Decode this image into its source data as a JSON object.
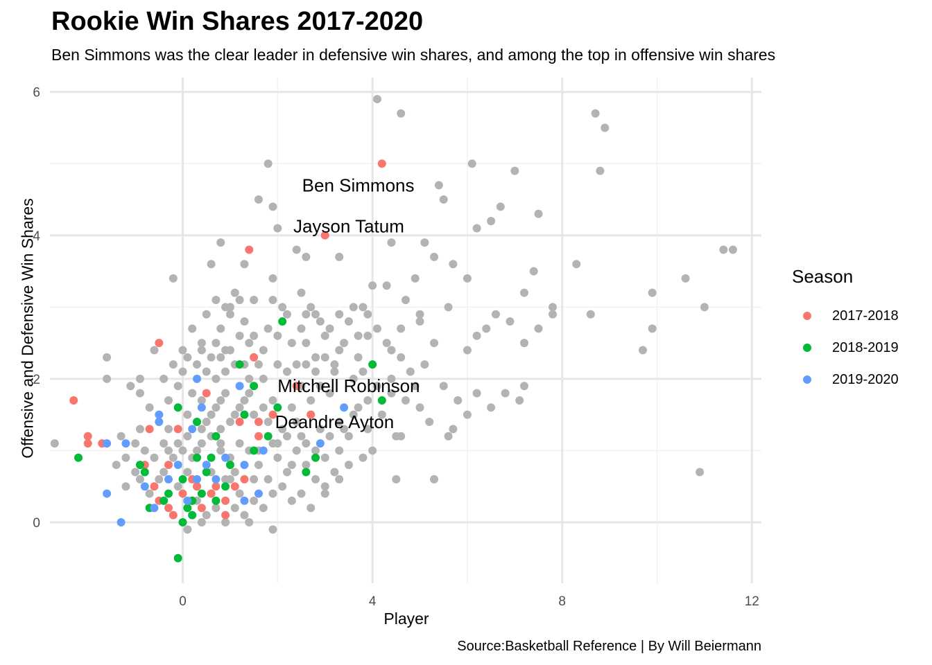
{
  "chart_data": {
    "type": "scatter",
    "title": "Rookie Win Shares 2017-2020",
    "subtitle": "Ben Simmons was the clear leader in defensive win shares, and among the top in offensive win shares",
    "caption": "Source:Basketball Reference | By Will Beiermann",
    "xlabel": "Player",
    "ylabel": "Offensive and Defensive Win Shares",
    "xlim": [
      -2.8,
      12.2
    ],
    "ylim": [
      -0.85,
      6.2
    ],
    "x_ticks": [
      0,
      4,
      8,
      12
    ],
    "y_ticks": [
      0,
      2,
      4,
      6
    ],
    "grid": true,
    "legend": {
      "title": "Season",
      "position": "right",
      "entries": [
        {
          "label": "2017-2018",
          "color": "#F8766D"
        },
        {
          "label": "2018-2019",
          "color": "#00BA38"
        },
        {
          "label": "2019-2020",
          "color": "#619CFF"
        }
      ]
    },
    "other_color": "#b3b3b3",
    "annotations": [
      {
        "text": "Ben Simmons",
        "x": 3.7,
        "y": 4.7
      },
      {
        "text": "Jayson Tatum",
        "x": 3.5,
        "y": 4.13
      },
      {
        "text": "Mitchell Robinson",
        "x": 3.5,
        "y": 1.9
      },
      {
        "text": "Deandre Ayton",
        "x": 3.2,
        "y": 1.4
      }
    ],
    "series": [
      {
        "name": "2017-2018",
        "points": [
          [
            4.2,
            5.0
          ],
          [
            3.0,
            4.0
          ],
          [
            1.4,
            3.8
          ],
          [
            -2.3,
            1.7
          ],
          [
            -2.0,
            1.2
          ],
          [
            -2.0,
            1.1
          ],
          [
            -1.7,
            1.1
          ],
          [
            -0.5,
            2.5
          ],
          [
            -0.7,
            1.3
          ],
          [
            -0.8,
            0.8
          ],
          [
            -0.6,
            0.5
          ],
          [
            -0.5,
            0.3
          ],
          [
            -0.3,
            0.2
          ],
          [
            -0.2,
            0.1
          ],
          [
            0.0,
            0.4
          ],
          [
            0.2,
            0.3
          ],
          [
            0.3,
            0.5
          ],
          [
            0.4,
            0.2
          ],
          [
            0.6,
            0.4
          ],
          [
            0.9,
            0.1
          ],
          [
            1.1,
            0.5
          ],
          [
            1.2,
            1.4
          ],
          [
            1.5,
            2.3
          ],
          [
            1.6,
            1.4
          ],
          [
            1.6,
            1.2
          ],
          [
            1.9,
            1.5
          ],
          [
            0.5,
            1.8
          ],
          [
            0.9,
            0.3
          ],
          [
            1.3,
            0.6
          ],
          [
            -0.1,
            1.3
          ],
          [
            2.4,
            1.9
          ],
          [
            2.7,
            1.5
          ],
          [
            0.2,
            0.6
          ],
          [
            0.7,
            0.5
          ],
          [
            -0.3,
            0.8
          ]
        ]
      },
      {
        "name": "2018-2019",
        "points": [
          [
            2.1,
            2.8
          ],
          [
            4.0,
            2.2
          ],
          [
            1.2,
            2.2
          ],
          [
            4.2,
            1.7
          ],
          [
            2.0,
            1.6
          ],
          [
            1.5,
            1.9
          ],
          [
            -2.2,
            0.9
          ],
          [
            -0.1,
            1.6
          ],
          [
            0.3,
            1.4
          ],
          [
            0.7,
            1.2
          ],
          [
            1.0,
            0.8
          ],
          [
            1.8,
            1.2
          ],
          [
            1.5,
            1.0
          ],
          [
            2.6,
            0.7
          ],
          [
            2.8,
            0.9
          ],
          [
            -0.7,
            0.2
          ],
          [
            -0.8,
            0.7
          ],
          [
            -0.3,
            0.4
          ],
          [
            0.0,
            0.6
          ],
          [
            0.1,
            0.2
          ],
          [
            0.2,
            0.3
          ],
          [
            0.3,
            0.9
          ],
          [
            0.5,
            0.7
          ],
          [
            0.7,
            0.3
          ],
          [
            0.9,
            0.5
          ],
          [
            -0.1,
            -0.5
          ],
          [
            0.0,
            0.0
          ],
          [
            -0.9,
            0.8
          ],
          [
            0.4,
            0.4
          ],
          [
            -0.4,
            0.3
          ],
          [
            0.2,
            0.1
          ],
          [
            0.6,
            0.9
          ],
          [
            1.3,
            1.5
          ]
        ]
      },
      {
        "name": "2019-2020",
        "points": [
          [
            0.3,
            2.0
          ],
          [
            1.2,
            1.9
          ],
          [
            0.4,
            1.6
          ],
          [
            -0.5,
            1.5
          ],
          [
            0.2,
            1.3
          ],
          [
            -1.2,
            1.1
          ],
          [
            -1.6,
            1.1
          ],
          [
            -1.6,
            0.4
          ],
          [
            -1.3,
            0.0
          ],
          [
            -0.6,
            0.2
          ],
          [
            -0.8,
            0.5
          ],
          [
            -0.3,
            0.6
          ],
          [
            -0.1,
            0.8
          ],
          [
            0.3,
            0.6
          ],
          [
            0.9,
            0.9
          ],
          [
            1.3,
            0.8
          ],
          [
            0.5,
            0.8
          ],
          [
            1.3,
            0.3
          ],
          [
            1.6,
            0.4
          ],
          [
            1.7,
            1.0
          ],
          [
            2.9,
            1.1
          ],
          [
            3.4,
            1.6
          ],
          [
            0.1,
            0.3
          ],
          [
            -0.5,
            1.4
          ],
          [
            0.7,
            0.6
          ]
        ]
      }
    ],
    "other_players": [
      [
        4.1,
        5.9
      ],
      [
        4.6,
        5.7
      ],
      [
        8.7,
        5.7
      ],
      [
        8.9,
        5.5
      ],
      [
        6.1,
        5.0
      ],
      [
        7.0,
        4.9
      ],
      [
        8.8,
        4.9
      ],
      [
        1.8,
        5.0
      ],
      [
        5.4,
        4.7
      ],
      [
        5.5,
        4.5
      ],
      [
        1.6,
        4.5
      ],
      [
        1.9,
        4.4
      ],
      [
        6.7,
        4.4
      ],
      [
        6.5,
        4.2
      ],
      [
        7.5,
        4.3
      ],
      [
        6.2,
        4.1
      ],
      [
        2.0,
        4.1
      ],
      [
        2.4,
        3.8
      ],
      [
        1.3,
        3.6
      ],
      [
        0.8,
        3.9
      ],
      [
        0.6,
        3.6
      ],
      [
        -0.2,
        3.4
      ],
      [
        2.6,
        3.7
      ],
      [
        3.3,
        3.7
      ],
      [
        4.4,
        3.9
      ],
      [
        5.1,
        3.9
      ],
      [
        5.3,
        3.7
      ],
      [
        5.7,
        3.6
      ],
      [
        6.0,
        3.4
      ],
      [
        7.2,
        3.2
      ],
      [
        7.4,
        3.5
      ],
      [
        8.3,
        3.6
      ],
      [
        11.4,
        3.8
      ],
      [
        11.6,
        3.8
      ],
      [
        10.6,
        3.4
      ],
      [
        9.9,
        3.2
      ],
      [
        11.0,
        3.0
      ],
      [
        9.9,
        2.7
      ],
      [
        9.7,
        2.4
      ],
      [
        8.6,
        2.9
      ],
      [
        7.8,
        3.0
      ],
      [
        7.8,
        2.9
      ],
      [
        7.5,
        2.7
      ],
      [
        7.2,
        2.5
      ],
      [
        6.9,
        2.8
      ],
      [
        6.6,
        2.9
      ],
      [
        6.4,
        2.7
      ],
      [
        6.2,
        2.6
      ],
      [
        6.0,
        2.4
      ],
      [
        5.6,
        3.0
      ],
      [
        5.3,
        2.5
      ],
      [
        5.0,
        2.9
      ],
      [
        4.7,
        3.1
      ],
      [
        4.6,
        2.7
      ],
      [
        4.4,
        2.4
      ],
      [
        3.8,
        3.0
      ],
      [
        3.9,
        2.6
      ],
      [
        3.7,
        2.3
      ],
      [
        3.6,
        2.0
      ],
      [
        3.5,
        2.8
      ],
      [
        3.3,
        2.4
      ],
      [
        3.2,
        2.2
      ],
      [
        3.0,
        2.6
      ],
      [
        2.8,
        2.9
      ],
      [
        2.8,
        2.3
      ],
      [
        2.6,
        2.5
      ],
      [
        2.5,
        2.7
      ],
      [
        2.4,
        2.2
      ],
      [
        2.2,
        2.9
      ],
      [
        2.0,
        2.6
      ],
      [
        1.9,
        3.1
      ],
      [
        1.8,
        2.7
      ],
      [
        1.7,
        2.4
      ],
      [
        1.6,
        2.2
      ],
      [
        1.5,
        2.6
      ],
      [
        1.4,
        2.0
      ],
      [
        1.3,
        2.8
      ],
      [
        1.2,
        3.1
      ],
      [
        1.1,
        3.2
      ],
      [
        1.0,
        2.9
      ],
      [
        0.9,
        3.0
      ],
      [
        0.8,
        2.7
      ],
      [
        0.7,
        2.5
      ],
      [
        0.6,
        2.3
      ],
      [
        0.5,
        2.9
      ],
      [
        0.4,
        2.5
      ],
      [
        0.3,
        2.2
      ],
      [
        0.2,
        2.7
      ],
      [
        0.1,
        2.3
      ],
      [
        0.0,
        2.1
      ],
      [
        -0.2,
        2.2
      ],
      [
        -0.4,
        2.0
      ],
      [
        -0.6,
        2.4
      ],
      [
        -0.9,
        2.0
      ],
      [
        -1.1,
        1.9
      ],
      [
        -1.6,
        2.3
      ],
      [
        -1.6,
        2.0
      ],
      [
        -0.9,
        1.8
      ],
      [
        -0.7,
        1.6
      ],
      [
        -0.3,
        1.7
      ],
      [
        0.1,
        1.5
      ],
      [
        0.4,
        1.7
      ],
      [
        0.6,
        1.5
      ],
      [
        0.8,
        1.7
      ],
      [
        1.0,
        1.4
      ],
      [
        1.2,
        1.6
      ],
      [
        1.4,
        1.8
      ],
      [
        1.7,
        1.6
      ],
      [
        1.9,
        1.7
      ],
      [
        2.1,
        1.3
      ],
      [
        2.3,
        1.6
      ],
      [
        2.5,
        1.2
      ],
      [
        2.7,
        1.7
      ],
      [
        2.9,
        1.3
      ],
      [
        3.1,
        1.8
      ],
      [
        3.3,
        1.4
      ],
      [
        3.5,
        1.2
      ],
      [
        3.7,
        1.6
      ],
      [
        3.9,
        1.3
      ],
      [
        4.2,
        1.5
      ],
      [
        4.5,
        1.2
      ],
      [
        4.7,
        1.7
      ],
      [
        5.0,
        1.6
      ],
      [
        5.2,
        1.4
      ],
      [
        5.5,
        1.9
      ],
      [
        5.8,
        1.7
      ],
      [
        6.0,
        1.5
      ],
      [
        6.2,
        1.8
      ],
      [
        6.5,
        1.6
      ],
      [
        6.8,
        1.8
      ],
      [
        7.2,
        1.9
      ],
      [
        7.1,
        1.7
      ],
      [
        5.6,
        1.2
      ],
      [
        5.7,
        1.3
      ],
      [
        4.6,
        1.2
      ],
      [
        4.0,
        1.0
      ],
      [
        3.8,
        0.9
      ],
      [
        3.5,
        0.8
      ],
      [
        3.2,
        0.7
      ],
      [
        3.0,
        0.9
      ],
      [
        2.8,
        0.6
      ],
      [
        2.6,
        0.8
      ],
      [
        2.4,
        1.0
      ],
      [
        2.2,
        0.7
      ],
      [
        2.0,
        0.9
      ],
      [
        1.8,
        0.6
      ],
      [
        1.6,
        0.8
      ],
      [
        1.4,
        1.0
      ],
      [
        1.2,
        0.4
      ],
      [
        1.0,
        0.6
      ],
      [
        0.8,
        1.0
      ],
      [
        0.6,
        0.7
      ],
      [
        0.4,
        1.1
      ],
      [
        0.2,
        0.9
      ],
      [
        0.0,
        1.0
      ],
      [
        -0.2,
        0.9
      ],
      [
        -0.4,
        1.1
      ],
      [
        -0.6,
        0.9
      ],
      [
        -0.8,
        1.0
      ],
      [
        -1.0,
        0.7
      ],
      [
        -1.2,
        0.5
      ],
      [
        -1.4,
        0.8
      ],
      [
        -1.3,
        1.2
      ],
      [
        -1.0,
        1.1
      ],
      [
        -0.9,
        1.3
      ],
      [
        -2.7,
        1.1
      ],
      [
        -1.2,
        0.9
      ],
      [
        -0.9,
        0.6
      ],
      [
        -0.4,
        0.7
      ],
      [
        -0.1,
        0.5
      ],
      [
        0.1,
        0.7
      ],
      [
        0.3,
        0.3
      ],
      [
        0.5,
        0.1
      ],
      [
        0.7,
        0.2
      ],
      [
        0.9,
        0.6
      ],
      [
        1.1,
        0.2
      ],
      [
        1.3,
        0.1
      ],
      [
        1.5,
        0.3
      ],
      [
        1.7,
        0.2
      ],
      [
        1.9,
        0.4
      ],
      [
        2.1,
        0.5
      ],
      [
        2.3,
        0.3
      ],
      [
        2.5,
        0.4
      ],
      [
        2.7,
        0.2
      ],
      [
        3.0,
        0.5
      ],
      [
        3.3,
        0.6
      ],
      [
        4.5,
        0.6
      ],
      [
        5.3,
        0.6
      ],
      [
        10.9,
        0.7
      ],
      [
        1.0,
        0.9
      ],
      [
        0.8,
        1.3
      ],
      [
        0.6,
        1.2
      ],
      [
        0.4,
        1.3
      ],
      [
        2.0,
        1.1
      ],
      [
        2.2,
        1.2
      ],
      [
        2.4,
        1.4
      ],
      [
        2.6,
        1.1
      ],
      [
        1.8,
        1.4
      ],
      [
        1.6,
        1.0
      ],
      [
        0.2,
        0.1
      ],
      [
        0.4,
        0.0
      ],
      [
        0.1,
        -0.1
      ],
      [
        1.9,
        -0.1
      ],
      [
        1.4,
        0.0
      ],
      [
        0.9,
        0.0
      ],
      [
        3.3,
        1.0
      ],
      [
        3.0,
        0.4
      ],
      [
        1.2,
        1.1
      ],
      [
        0.0,
        2.4
      ],
      [
        0.9,
        2.4
      ],
      [
        1.4,
        2.5
      ],
      [
        2.1,
        3.0
      ],
      [
        2.5,
        3.2
      ],
      [
        1.9,
        3.4
      ],
      [
        0.7,
        3.1
      ],
      [
        1.0,
        3.0
      ],
      [
        1.5,
        3.1
      ],
      [
        3.6,
        3.0
      ],
      [
        4.3,
        3.3
      ],
      [
        5.0,
        2.8
      ],
      [
        4.0,
        3.3
      ],
      [
        4.9,
        3.4
      ],
      [
        3.9,
        2.9
      ],
      [
        3.4,
        2.5
      ],
      [
        2.9,
        1.9
      ],
      [
        3.8,
        2.1
      ],
      [
        4.4,
        2.0
      ],
      [
        1.3,
        2.2
      ],
      [
        0.9,
        2.1
      ],
      [
        1.5,
        1.5
      ],
      [
        0.8,
        1.1
      ],
      [
        0.6,
        0.4
      ],
      [
        0.3,
        0.5
      ],
      [
        -0.3,
        1.0
      ],
      [
        -0.5,
        0.6
      ],
      [
        -0.7,
        0.4
      ],
      [
        1.5,
        0.6
      ],
      [
        2.3,
        0.8
      ],
      [
        1.1,
        0.7
      ],
      [
        1.9,
        1.1
      ],
      [
        2.8,
        1.0
      ],
      [
        3.1,
        1.2
      ],
      [
        3.4,
        1.3
      ],
      [
        3.6,
        1.5
      ],
      [
        3.9,
        1.7
      ],
      [
        4.1,
        1.9
      ],
      [
        4.4,
        1.8
      ],
      [
        4.8,
        2.1
      ],
      [
        4.6,
        2.3
      ],
      [
        5.1,
        2.2
      ],
      [
        4.9,
        1.9
      ],
      [
        4.3,
        2.5
      ],
      [
        4.1,
        2.7
      ],
      [
        3.7,
        2.6
      ],
      [
        3.3,
        2.9
      ],
      [
        2.7,
        3.0
      ],
      [
        2.3,
        2.5
      ],
      [
        2.0,
        2.2
      ],
      [
        1.7,
        2.0
      ],
      [
        1.2,
        2.6
      ],
      [
        0.7,
        2.0
      ],
      [
        0.5,
        2.1
      ],
      [
        0.2,
        1.8
      ],
      [
        -0.1,
        1.9
      ],
      [
        -0.3,
        1.3
      ],
      [
        -0.1,
        1.1
      ],
      [
        0.1,
        1.2
      ],
      [
        0.3,
        1.0
      ],
      [
        0.5,
        1.4
      ],
      [
        0.7,
        1.6
      ],
      [
        0.9,
        1.8
      ],
      [
        1.1,
        1.5
      ],
      [
        1.3,
        1.7
      ],
      [
        2.5,
        1.9
      ],
      [
        2.2,
        2.1
      ],
      [
        2.6,
        2.2
      ],
      [
        2.8,
        2.1
      ],
      [
        3.0,
        2.3
      ],
      [
        3.2,
        2.1
      ],
      [
        3.1,
        2.7
      ],
      [
        2.9,
        2.8
      ],
      [
        2.6,
        2.9
      ],
      [
        1.0,
        2.4
      ],
      [
        1.1,
        2.2
      ],
      [
        0.8,
        2.3
      ],
      [
        0.4,
        2.4
      ]
    ]
  }
}
